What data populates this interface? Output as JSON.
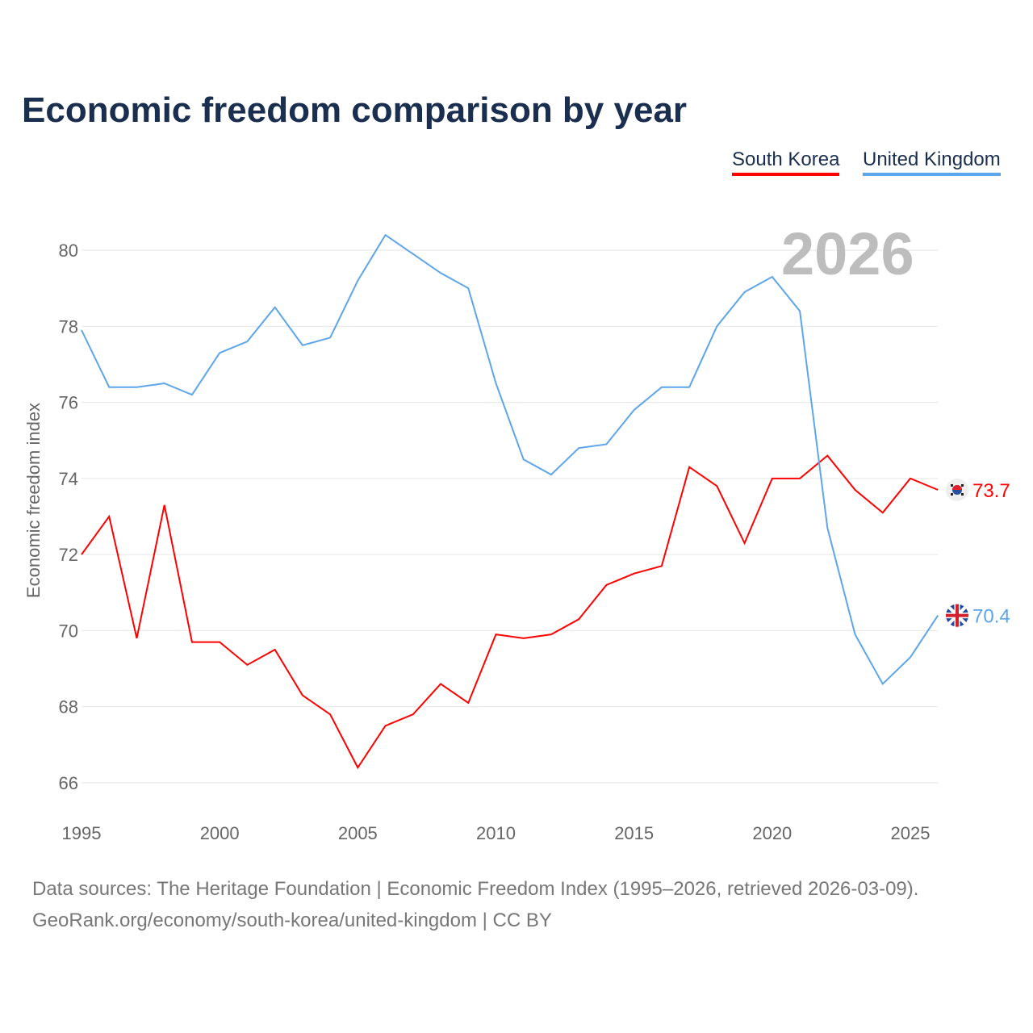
{
  "chart_data": {
    "type": "line",
    "title": "Economic freedom comparison by year",
    "ylabel": "Economic freedom index",
    "xlabel": "",
    "ylim": [
      66,
      80.5
    ],
    "xlim": [
      1995,
      2026
    ],
    "yticks": [
      66,
      68,
      70,
      72,
      74,
      76,
      78,
      80
    ],
    "xticks": [
      1995,
      2000,
      2005,
      2010,
      2015,
      2020,
      2025
    ],
    "grid": true,
    "legend_position": "top-right",
    "current_year": "2026",
    "x": [
      1995,
      1996,
      1997,
      1998,
      1999,
      2000,
      2001,
      2002,
      2003,
      2004,
      2005,
      2006,
      2007,
      2008,
      2009,
      2010,
      2011,
      2012,
      2013,
      2014,
      2015,
      2016,
      2017,
      2018,
      2019,
      2020,
      2021,
      2022,
      2023,
      2024,
      2025,
      2026
    ],
    "series": [
      {
        "name": "South Korea",
        "color": "#ff0000",
        "end_label": "73.7",
        "values": [
          72.0,
          73.0,
          69.8,
          73.3,
          69.7,
          69.7,
          69.1,
          69.5,
          68.3,
          67.8,
          66.4,
          67.5,
          67.8,
          68.6,
          68.1,
          69.9,
          69.8,
          69.9,
          70.3,
          71.2,
          71.5,
          71.7,
          74.3,
          73.8,
          72.3,
          74.0,
          74.0,
          74.6,
          73.7,
          73.1,
          74.0,
          73.7
        ]
      },
      {
        "name": "United Kingdom",
        "color": "#5da5ea",
        "end_label": "70.4",
        "values": [
          77.9,
          76.4,
          76.4,
          76.5,
          76.2,
          77.3,
          77.6,
          78.5,
          77.5,
          77.7,
          79.2,
          80.4,
          79.9,
          79.4,
          79.0,
          76.5,
          74.5,
          74.1,
          74.8,
          74.9,
          75.8,
          76.4,
          76.4,
          78.0,
          78.9,
          79.3,
          78.4,
          72.7,
          69.9,
          68.6,
          69.3,
          70.4
        ]
      }
    ]
  },
  "footer": {
    "line1": "Data sources: The Heritage Foundation | Economic Freedom Index (1995–2026, retrieved 2026-03-09).",
    "line2": "GeoRank.org/economy/south-korea/united-kingdom | CC BY"
  }
}
